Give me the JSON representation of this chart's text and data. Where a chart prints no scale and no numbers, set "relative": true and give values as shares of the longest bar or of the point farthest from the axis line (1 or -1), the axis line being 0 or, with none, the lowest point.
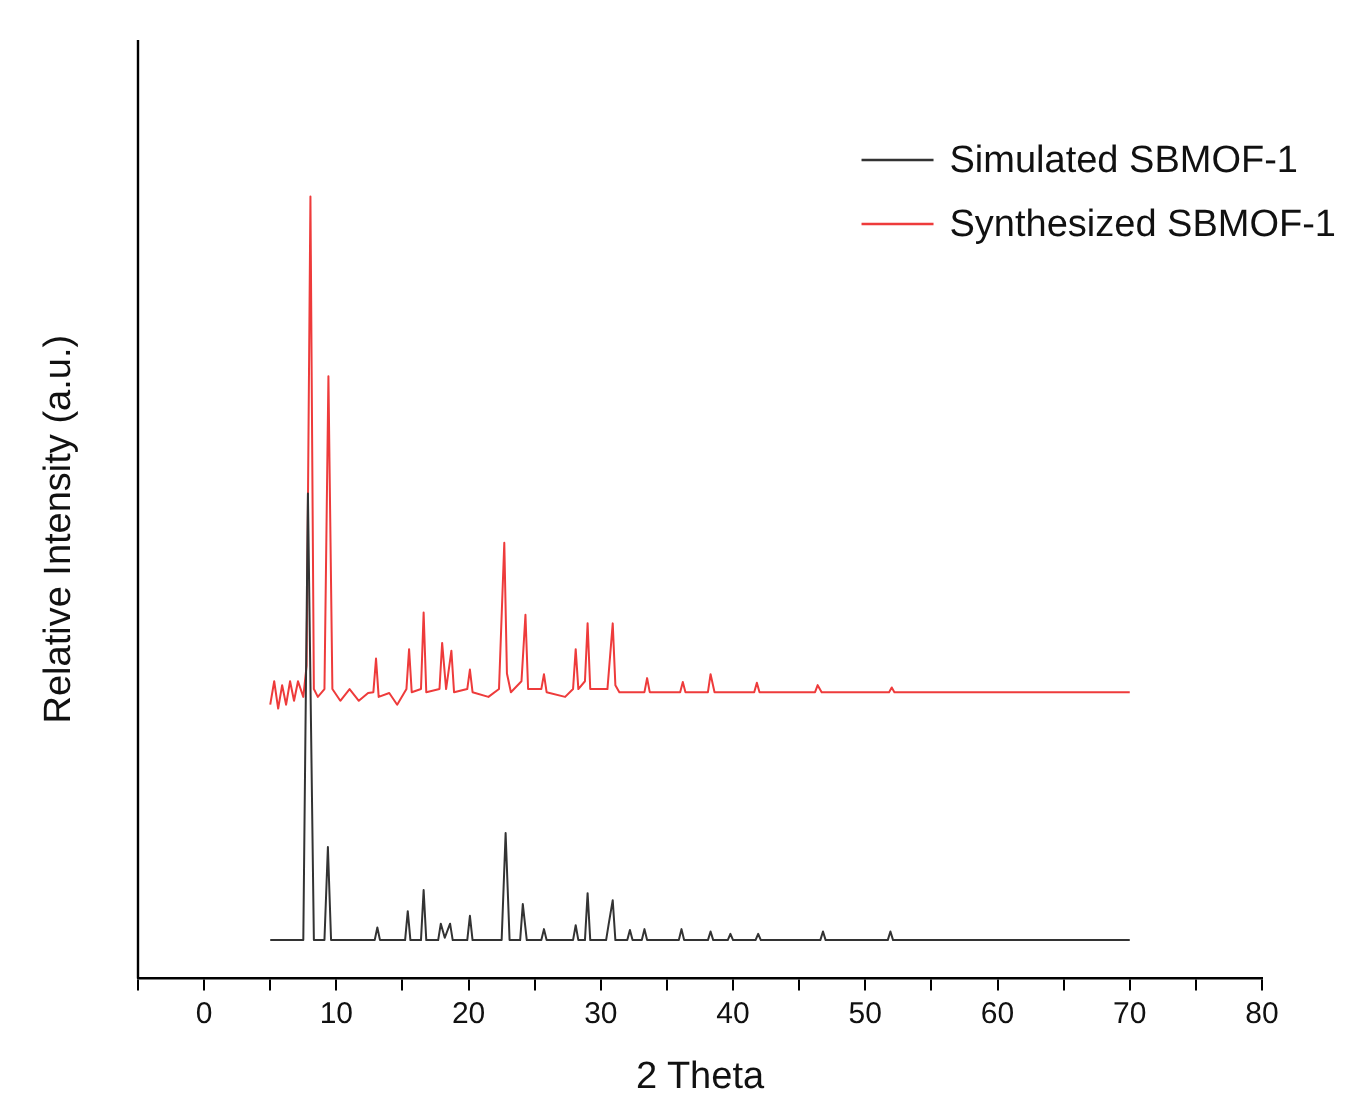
{
  "chart_data": {
    "type": "line",
    "xlabel": "2 Theta",
    "ylabel": "Relative Intensity (a.u.)",
    "relative": true,
    "legend": "top right",
    "tick_labels": "x",
    "grid": false,
    "marker": "none",
    "line_style": "solid",
    "xlim": [
      -5,
      80
    ],
    "xticks": [
      {
        "value": -5,
        "label": null
      },
      0,
      {
        "value": 5,
        "label": null
      },
      10,
      {
        "value": 15,
        "label": null
      },
      20,
      {
        "value": 25,
        "label": null
      },
      30,
      {
        "value": 35,
        "label": null
      },
      40,
      {
        "value": 45,
        "label": null
      },
      50,
      {
        "value": 55,
        "label": null
      },
      60,
      {
        "value": 65,
        "label": null
      },
      70,
      {
        "value": 75,
        "label": null
      },
      80
    ],
    "series": [
      {
        "name": "Simulated SBMOF-1",
        "color": "#333333",
        "x": [
          5,
          7.5,
          7.85,
          8.3,
          9.1,
          9.36,
          9.6,
          12.9,
          13.1,
          13.3,
          15.2,
          15.4,
          15.6,
          16.4,
          16.6,
          16.8,
          17.7,
          17.9,
          18.2,
          18.6,
          18.8,
          19.9,
          20.1,
          20.3,
          22.5,
          22.8,
          23.1,
          23.9,
          24.1,
          24.4,
          25.5,
          25.7,
          25.9,
          27.9,
          28.1,
          28.3,
          28.8,
          29.0,
          29.2,
          30.4,
          30.6,
          30.9,
          31.1,
          32.0,
          32.2,
          32.4,
          33.1,
          33.3,
          33.5,
          35.9,
          36.1,
          36.3,
          38.1,
          38.3,
          38.5,
          39.6,
          39.8,
          40,
          41.7,
          41.9,
          42.1,
          46.6,
          46.8,
          47,
          51.7,
          51.9,
          52.1,
          70
        ],
        "values": [
          0.049,
          0.049,
          0.62,
          0.049,
          0.049,
          0.168,
          0.049,
          0.049,
          0.065,
          0.049,
          0.049,
          0.086,
          0.049,
          0.049,
          0.113,
          0.049,
          0.049,
          0.07,
          0.052,
          0.07,
          0.049,
          0.049,
          0.08,
          0.049,
          0.049,
          0.186,
          0.049,
          0.049,
          0.095,
          0.049,
          0.049,
          0.063,
          0.049,
          0.049,
          0.068,
          0.049,
          0.049,
          0.109,
          0.049,
          0.049,
          0.07,
          0.1,
          0.049,
          0.049,
          0.062,
          0.049,
          0.049,
          0.063,
          0.049,
          0.049,
          0.063,
          0.049,
          0.049,
          0.06,
          0.049,
          0.049,
          0.057,
          0.049,
          0.049,
          0.057,
          0.049,
          0.049,
          0.06,
          0.049,
          0.049,
          0.06,
          0.049,
          0.049
        ]
      },
      {
        "name": "Synthesized SBMOF-1",
        "color": "#ee3b3b",
        "x": [
          5,
          5.3,
          5.6,
          5.9,
          6.2,
          6.5,
          6.8,
          7.1,
          7.5,
          7.75,
          8.04,
          8.3,
          8.6,
          9.1,
          9.4,
          9.7,
          10.3,
          11,
          11.7,
          12.4,
          12.8,
          13.0,
          13.2,
          14,
          14.6,
          15.3,
          15.5,
          15.7,
          16.4,
          16.6,
          16.8,
          17.8,
          18.0,
          18.3,
          18.7,
          18.9,
          19.9,
          20.1,
          20.3,
          21.5,
          22.3,
          22.7,
          22.9,
          23.2,
          24.0,
          24.3,
          24.5,
          25.5,
          25.7,
          25.9,
          27.3,
          27.9,
          28.1,
          28.3,
          28.8,
          29.0,
          29.2,
          30.5,
          30.9,
          31.1,
          31.4,
          33.3,
          33.5,
          33.7,
          36.0,
          36.2,
          36.4,
          38.1,
          38.3,
          38.6,
          41.6,
          41.8,
          42,
          46.2,
          46.4,
          46.7,
          51.8,
          52,
          52.2,
          70
        ],
        "values": [
          0.35,
          0.38,
          0.345,
          0.375,
          0.35,
          0.38,
          0.355,
          0.38,
          0.36,
          0.4,
          1.0,
          0.37,
          0.36,
          0.37,
          0.77,
          0.37,
          0.355,
          0.37,
          0.355,
          0.365,
          0.366,
          0.409,
          0.36,
          0.365,
          0.35,
          0.37,
          0.421,
          0.366,
          0.37,
          0.468,
          0.366,
          0.37,
          0.429,
          0.37,
          0.419,
          0.366,
          0.37,
          0.395,
          0.366,
          0.36,
          0.37,
          0.557,
          0.39,
          0.366,
          0.38,
          0.465,
          0.37,
          0.37,
          0.389,
          0.366,
          0.36,
          0.37,
          0.421,
          0.37,
          0.38,
          0.454,
          0.37,
          0.37,
          0.454,
          0.375,
          0.366,
          0.366,
          0.384,
          0.366,
          0.366,
          0.379,
          0.366,
          0.366,
          0.389,
          0.366,
          0.366,
          0.378,
          0.366,
          0.366,
          0.375,
          0.366,
          0.366,
          0.372,
          0.366,
          0.366
        ]
      }
    ]
  }
}
